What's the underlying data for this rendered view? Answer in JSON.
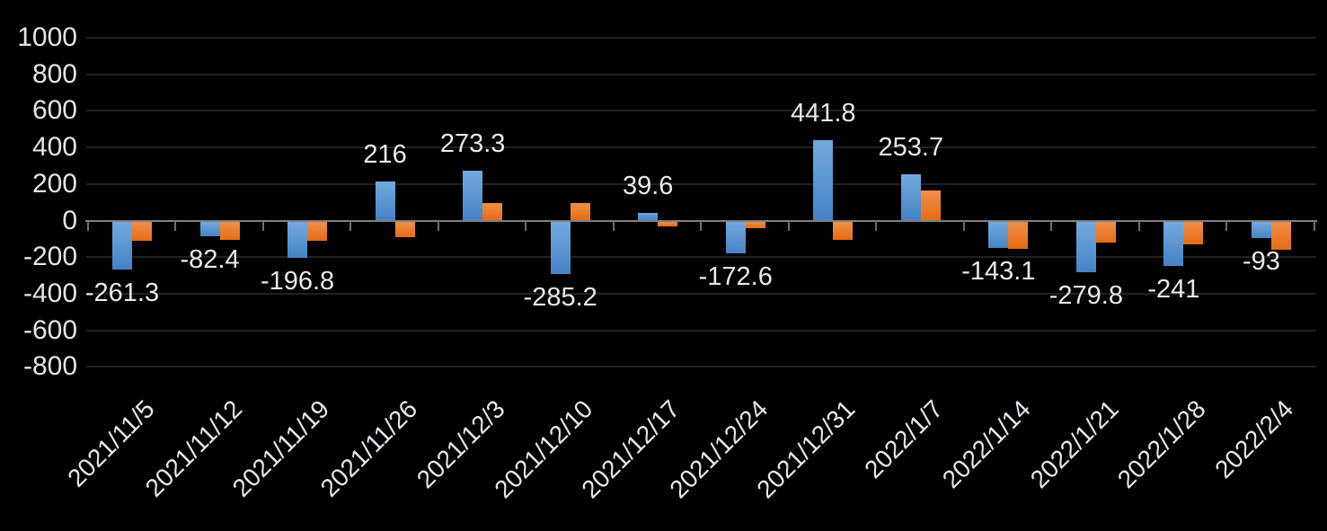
{
  "chart_data": {
    "type": "bar",
    "title": "",
    "categories": [
      "2021/11/5",
      "2021/11/12",
      "2021/11/19",
      "2021/11/26",
      "2021/12/3",
      "2021/12/10",
      "2021/12/17",
      "2021/12/24",
      "2021/12/31",
      "2022/1/7",
      "2022/1/14",
      "2022/1/21",
      "2022/1/28",
      "2022/2/4"
    ],
    "series": [
      {
        "name": "series-1-blue",
        "colors": {
          "top": "#73a9de",
          "bottom": "#4583c5"
        },
        "values": [
          -261.3,
          -82.4,
          -196.8,
          216,
          273.3,
          -285.2,
          39.6,
          -172.6,
          441.8,
          253.7,
          -143.1,
          -279.8,
          -241,
          -93
        ],
        "data_labels": [
          "-261.3",
          "-82.4",
          "-196.8",
          "216",
          "273.3",
          "-285.2",
          "39.6",
          "-172.6",
          "441.8",
          "253.7",
          "-143.1",
          "-279.8",
          "-241",
          "-93"
        ]
      },
      {
        "name": "series-2-orange",
        "colors": {
          "top": "#f19049",
          "bottom": "#e56c13"
        },
        "values": [
          -105,
          -100,
          -105,
          -85,
          95,
          95,
          -25,
          -35,
          -100,
          165,
          -150,
          -115,
          -125,
          -155
        ],
        "data_labels": null
      }
    ],
    "y_axis": {
      "min": -800,
      "max": 1000,
      "tick_step": 200,
      "tick_labels": [
        "1000",
        "800",
        "600",
        "400",
        "200",
        "0",
        "-200",
        "-400",
        "-600",
        "-800"
      ]
    },
    "x_axis": {
      "label_rotation_deg": -45
    },
    "legend": "none",
    "grid": true,
    "style": {
      "background": "#000000",
      "text_color": "#e4e4e4",
      "gridline_color": "#212121",
      "axis_color": "#7f7f7f",
      "bar_blue": "#4f8dcc",
      "bar_orange": "#ea7a28"
    }
  }
}
